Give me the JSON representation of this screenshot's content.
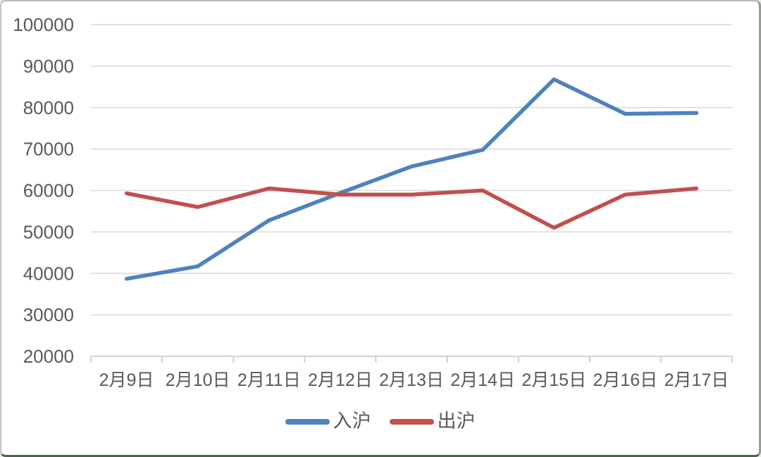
{
  "frame": {
    "background": "#ffffff",
    "border_side_color": "#90a090",
    "border_bottom_color": "#4c6147"
  },
  "chart_data": {
    "type": "line",
    "title": "",
    "xlabel": "",
    "ylabel": "",
    "categories": [
      "2月9日",
      "2月10日",
      "2月11日",
      "2月12日",
      "2月13日",
      "2月14日",
      "2月15日",
      "2月16日",
      "2月17日"
    ],
    "series": [
      {
        "name": "入沪",
        "color": "#4F81BD",
        "values": [
          38700,
          41700,
          52800,
          59400,
          65800,
          69800,
          86800,
          78500,
          78700
        ]
      },
      {
        "name": "出沪",
        "color": "#C0504D",
        "values": [
          59300,
          56000,
          60500,
          59000,
          59000,
          60000,
          51000,
          59000,
          60500
        ]
      }
    ],
    "y_axis": {
      "min": 20000,
      "max": 100000,
      "step": 10000,
      "tick_labels": [
        "100000",
        "90000",
        "80000",
        "70000",
        "60000",
        "50000",
        "40000",
        "30000",
        "20000"
      ]
    },
    "grid": true,
    "legend_position": "bottom",
    "gridline_color": "#D9D9D9",
    "axis_color": "#C6C6C6",
    "tick_color": "#C6C6C6",
    "text_color": "#595959"
  }
}
